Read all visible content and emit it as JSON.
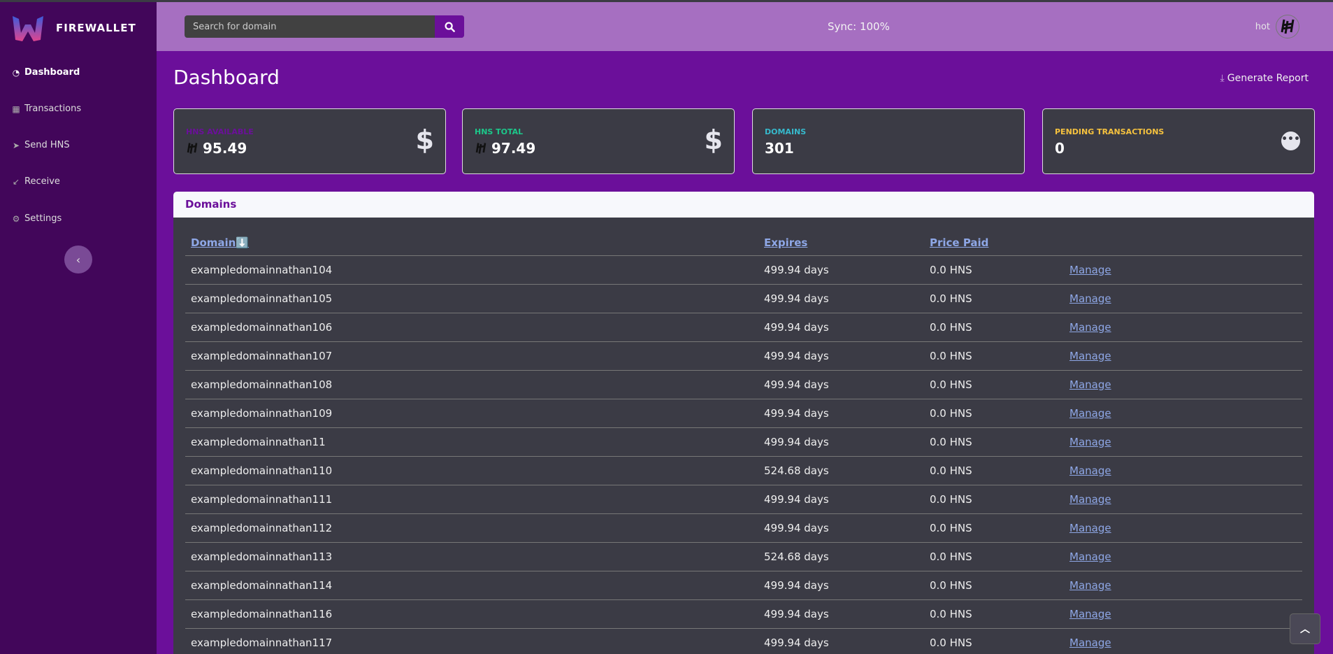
{
  "app": {
    "name": "FIREWALLET"
  },
  "sidebar": {
    "items": [
      {
        "label": "Dashboard",
        "icon": "gauge-icon"
      },
      {
        "label": "Transactions",
        "icon": "table-icon"
      },
      {
        "label": "Send HNS",
        "icon": "send-icon"
      },
      {
        "label": "Receive",
        "icon": "arrow-down-left-icon"
      },
      {
        "label": "Settings",
        "icon": "gear-icon"
      }
    ],
    "collapse_icon": "‹"
  },
  "topbar": {
    "search_placeholder": "Search for domain",
    "sync": "Sync: 100%",
    "user": "hot"
  },
  "page": {
    "title": "Dashboard",
    "report_label": "Generate Report"
  },
  "cards": [
    {
      "label": "HNS AVAILABLE",
      "value": "95.49",
      "color": "#6b0f9a",
      "icon": "dollar-icon"
    },
    {
      "label": "HNS TOTAL",
      "value": "97.49",
      "color": "#1cc88a",
      "icon": "dollar-icon"
    },
    {
      "label": "DOMAINS",
      "value": "301",
      "color": "#36b9cc"
    },
    {
      "label": "PENDING TRANSACTIONS",
      "value": "0",
      "color": "#f6c23e",
      "icon": "more-icon"
    }
  ],
  "domains": {
    "title": "Domains",
    "columns": {
      "domain": "Domain⬇️",
      "expires": "Expires",
      "price": "Price Paid"
    },
    "manage_label": "Manage",
    "rows": [
      [
        "exampledomainnathan104",
        "499.94 days",
        "0.0 HNS"
      ],
      [
        "exampledomainnathan105",
        "499.94 days",
        "0.0 HNS"
      ],
      [
        "exampledomainnathan106",
        "499.94 days",
        "0.0 HNS"
      ],
      [
        "exampledomainnathan107",
        "499.94 days",
        "0.0 HNS"
      ],
      [
        "exampledomainnathan108",
        "499.94 days",
        "0.0 HNS"
      ],
      [
        "exampledomainnathan109",
        "499.94 days",
        "0.0 HNS"
      ],
      [
        "exampledomainnathan11",
        "499.94 days",
        "0.0 HNS"
      ],
      [
        "exampledomainnathan110",
        "524.68 days",
        "0.0 HNS"
      ],
      [
        "exampledomainnathan111",
        "499.94 days",
        "0.0 HNS"
      ],
      [
        "exampledomainnathan112",
        "499.94 days",
        "0.0 HNS"
      ],
      [
        "exampledomainnathan113",
        "524.68 days",
        "0.0 HNS"
      ],
      [
        "exampledomainnathan114",
        "499.94 days",
        "0.0 HNS"
      ],
      [
        "exampledomainnathan116",
        "499.94 days",
        "0.0 HNS"
      ],
      [
        "exampledomainnathan117",
        "499.94 days",
        "0.0 HNS"
      ]
    ]
  }
}
